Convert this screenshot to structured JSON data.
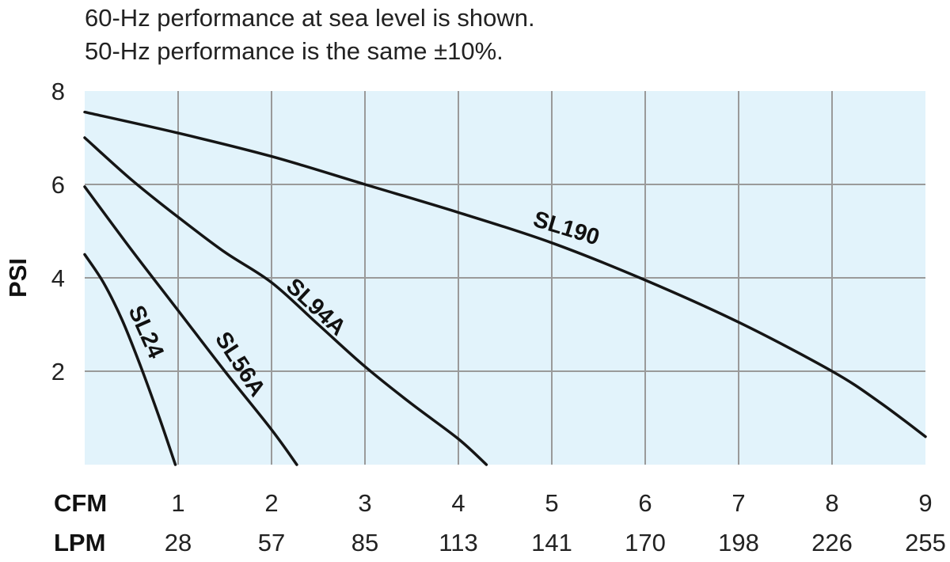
{
  "notes": [
    "60-Hz performance at sea level is shown.",
    "50-Hz performance is the same ±10%."
  ],
  "chart_data": {
    "type": "line",
    "title": "",
    "xlabel": "CFM",
    "x2label": "LPM",
    "ylabel": "PSI",
    "xlim": [
      0,
      9
    ],
    "ylim": [
      0,
      8
    ],
    "grid": true,
    "x_ticks": [
      1,
      2,
      3,
      4,
      5,
      6,
      7,
      8,
      9
    ],
    "x_tick_labels": [
      "1",
      "2",
      "3",
      "4",
      "5",
      "6",
      "7",
      "8",
      "9"
    ],
    "x2_tick_labels": [
      "28",
      "57",
      "85",
      "113",
      "141",
      "170",
      "198",
      "226",
      "255"
    ],
    "y_ticks": [
      2,
      4,
      6,
      8
    ],
    "y_tick_labels": [
      "2",
      "4",
      "6",
      "8"
    ],
    "plot_bg": "#e2f3fb",
    "grid_color": "#9a9a9a",
    "line_color": "#151515",
    "series": [
      {
        "name": "SL24",
        "x": [
          0,
          0.2,
          0.4,
          0.6,
          0.8,
          0.97
        ],
        "y": [
          4.5,
          3.9,
          3.1,
          2.1,
          1.0,
          0
        ]
      },
      {
        "name": "SL56A",
        "x": [
          0,
          0.5,
          1,
          1.5,
          2,
          2.27
        ],
        "y": [
          5.95,
          4.6,
          3.3,
          2.0,
          0.75,
          0
        ]
      },
      {
        "name": "SL94A",
        "x": [
          0,
          0.5,
          1,
          1.5,
          2,
          2.5,
          3,
          3.5,
          4,
          4.3
        ],
        "y": [
          7.0,
          6.1,
          5.3,
          4.55,
          3.9,
          3.0,
          2.1,
          1.3,
          0.55,
          0
        ]
      },
      {
        "name": "SL190",
        "x": [
          0,
          1,
          2,
          3,
          4,
          5,
          6,
          7,
          8,
          8.5,
          9
        ],
        "y": [
          7.55,
          7.1,
          6.6,
          6.0,
          5.4,
          4.75,
          3.95,
          3.05,
          2.0,
          1.35,
          0.6
        ]
      }
    ]
  }
}
